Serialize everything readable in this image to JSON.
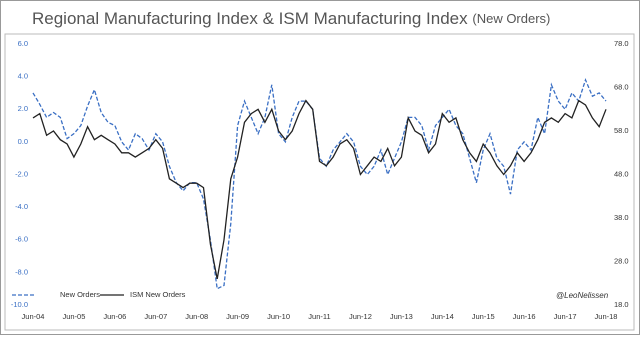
{
  "chart_data": {
    "type": "line",
    "title": "Regional Manufacturing Index & ISM Manufacturing Index",
    "subtitle": "(New Orders)",
    "annotation": "@LeoNelissen",
    "categories": [
      "Jun-04",
      null,
      null,
      null,
      null,
      null,
      "Jun-05",
      null,
      null,
      null,
      null,
      null,
      "Jun-06",
      null,
      null,
      null,
      null,
      null,
      "Jun-07",
      null,
      null,
      null,
      null,
      null,
      "Jun-08",
      null,
      null,
      null,
      null,
      null,
      "Jun-09",
      null,
      null,
      null,
      null,
      null,
      "Jun-10",
      null,
      null,
      null,
      null,
      null,
      "Jun-11",
      null,
      null,
      null,
      null,
      null,
      "Jun-12",
      null,
      null,
      null,
      null,
      null,
      "Jun-13",
      null,
      null,
      null,
      null,
      null,
      "Jun-14",
      null,
      null,
      null,
      null,
      null,
      "Jun-15",
      null,
      null,
      null,
      null,
      null,
      "Jun-16",
      null,
      null,
      null,
      null,
      null,
      "Jun-17",
      null,
      null,
      null,
      null,
      null,
      "Jun-18"
    ],
    "series": [
      {
        "name": "New Orders",
        "color": "#3a6fc4",
        "dashed": true,
        "values": [
          3.0,
          2.3,
          1.5,
          1.8,
          1.5,
          0.2,
          0.5,
          1.0,
          2.2,
          3.2,
          1.8,
          1.2,
          1.0,
          0.0,
          -0.5,
          0.5,
          0.2,
          -0.5,
          0.5,
          0.0,
          -1.5,
          -2.5,
          -3.0,
          -2.5,
          -2.5,
          -3.5,
          -6.0,
          -9.0,
          -8.8,
          -5.0,
          1.0,
          2.5,
          1.5,
          0.5,
          1.5,
          3.5,
          0.5,
          0.0,
          1.5,
          2.5,
          2.5,
          2.0,
          -1.0,
          -1.5,
          -0.5,
          0.0,
          0.5,
          0.0,
          -1.5,
          -2.0,
          -1.5,
          -0.5,
          -2.0,
          -1.0,
          0.0,
          1.5,
          1.5,
          1.0,
          -0.5,
          1.0,
          1.5,
          2.0,
          1.0,
          0.5,
          -1.0,
          -2.5,
          -0.5,
          0.5,
          -1.0,
          -1.5,
          -3.2,
          -0.5,
          0.0,
          -0.5,
          1.5,
          0.5,
          3.5,
          2.5,
          2.0,
          3.0,
          2.5,
          3.8,
          2.8,
          3.0,
          2.5
        ]
      },
      {
        "name": "ISM New Orders",
        "color": "#222222",
        "dashed": false,
        "axis": "y2",
        "values": [
          61,
          62,
          57,
          58,
          56,
          55,
          52,
          55,
          59,
          56,
          57,
          56,
          55,
          53,
          53,
          52,
          53,
          54,
          56,
          54,
          47,
          46,
          45,
          46,
          46,
          45,
          32,
          24,
          33,
          47,
          52,
          60,
          62,
          63,
          60,
          63,
          58,
          56,
          58,
          62,
          65,
          63,
          51,
          50,
          52,
          55,
          56,
          54,
          48,
          50,
          52,
          51,
          54,
          50,
          52,
          61,
          58,
          57,
          53,
          55,
          62,
          60,
          61,
          56,
          53,
          51,
          55,
          53,
          50,
          48,
          50,
          53,
          51,
          53,
          56,
          60,
          61,
          60,
          62,
          61,
          65,
          64,
          61,
          59,
          63
        ]
      }
    ],
    "ylim": [
      -10,
      6
    ],
    "yticks": [
      {
        "value": 6,
        "label": "6.0"
      },
      {
        "value": 4,
        "label": "4.0"
      },
      {
        "value": 2,
        "label": "2.0"
      },
      {
        "value": 0,
        "label": "0.0"
      },
      {
        "value": -2,
        "label": "-2.0"
      },
      {
        "value": -4,
        "label": "-4.0"
      },
      {
        "value": -6,
        "label": "-6.0"
      },
      {
        "value": -8,
        "label": "-8.0"
      },
      {
        "value": -10,
        "label": "-10.0"
      }
    ],
    "y2lim": [
      18,
      78
    ],
    "y2ticks": [
      {
        "value": 78,
        "label": "78.0"
      },
      {
        "value": 68,
        "label": "68.0"
      },
      {
        "value": 58,
        "label": "58.0"
      },
      {
        "value": 48,
        "label": "48.0"
      },
      {
        "value": 38,
        "label": "38.0"
      },
      {
        "value": 28,
        "label": "28.0"
      },
      {
        "value": 18,
        "label": "18.0"
      }
    ],
    "grid": false,
    "legend": "bottom-left"
  }
}
